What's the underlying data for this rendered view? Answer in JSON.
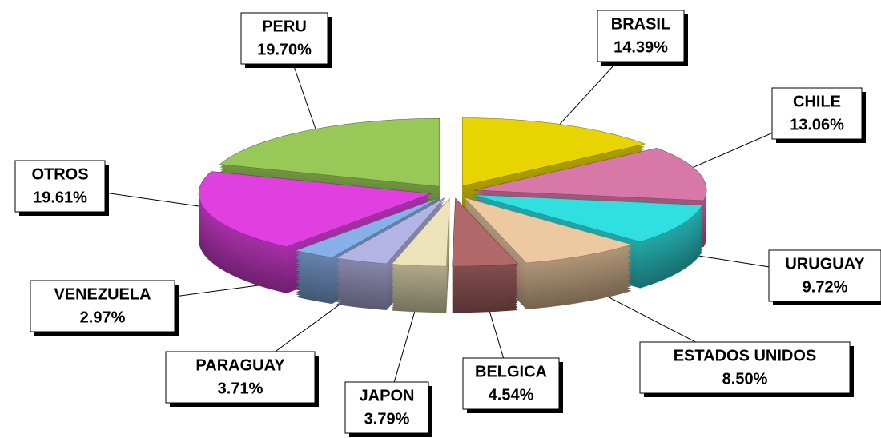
{
  "chart_data": {
    "type": "pie",
    "categories": [
      "BRASIL",
      "CHILE",
      "URUGUAY",
      "ESTADOS UNIDOS",
      "BELGICA",
      "JAPON",
      "PARAGUAY",
      "VENEZUELA",
      "OTROS",
      "PERU"
    ],
    "values": [
      14.39,
      13.06,
      9.72,
      8.5,
      4.54,
      3.79,
      3.71,
      2.97,
      19.61,
      19.7
    ],
    "value_labels": [
      "14.39%",
      "13.06%",
      "9.72%",
      "8.50%",
      "4.54%",
      "3.79%",
      "3.71%",
      "2.97%",
      "19.61%",
      "19.70%"
    ],
    "colors": [
      "#e8d400",
      "#d878a8",
      "#30e0e0",
      "#ecc9a0",
      "#b06868",
      "#ece4b8",
      "#b4b4e4",
      "#88b0e8",
      "#e040e0",
      "#98c858"
    ]
  }
}
